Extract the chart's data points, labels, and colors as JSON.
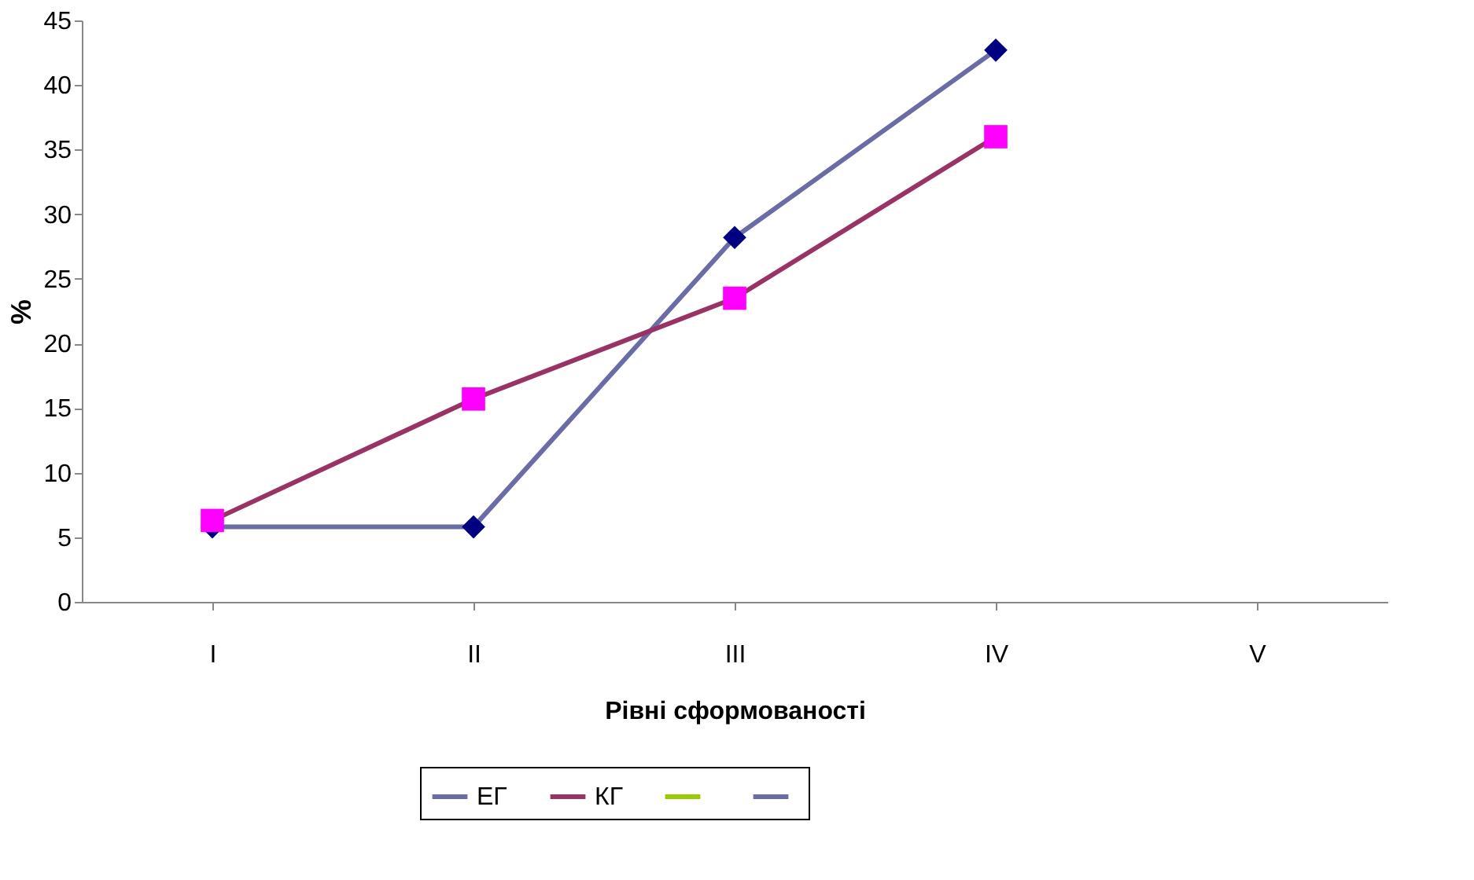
{
  "chart_data": {
    "type": "line",
    "xlabel": "Рівні сформованості",
    "ylabel": "%",
    "categories": [
      "I",
      "II",
      "III",
      "IV",
      "V"
    ],
    "series": [
      {
        "name": "ЕГ",
        "color": "#6b6ba6",
        "colors": [
          "#000080",
          "#000080",
          "#000080",
          "#000080",
          "#000080"
        ],
        "marker": "diamond",
        "values": [
          5.8,
          5.8,
          28.2,
          42.7,
          null
        ]
      },
      {
        "name": "КГ",
        "color": "#993366",
        "colors": [
          "#ff00ff",
          "#ff00ff",
          "#ff00ff",
          "#ff00ff",
          "#ff00ff"
        ],
        "marker": "square",
        "values": [
          6.3,
          15.7,
          23.5,
          36,
          null
        ]
      },
      {
        "color": "#99cc00",
        "colors": [
          "#ffff00",
          "#ffff00",
          "#ffff00",
          "#ffff00",
          "#ffff00"
        ],
        "marker": "triangle",
        "values": [
          null,
          null,
          null,
          null,
          null
        ]
      },
      {
        "color": "#6b6ba6",
        "colors": [
          "#00ffff",
          "#00ffff",
          "#00ffff",
          "#00ffff",
          "#00ffff"
        ],
        "marker": "cross",
        "values": [
          null,
          null,
          null,
          null,
          null
        ]
      }
    ],
    "ylim": [
      0,
      45
    ],
    "yticks": [
      0,
      5,
      10,
      15,
      20,
      25,
      30,
      35,
      40,
      45
    ],
    "grid": false,
    "legend": "bottom",
    "line_style": "solid"
  }
}
